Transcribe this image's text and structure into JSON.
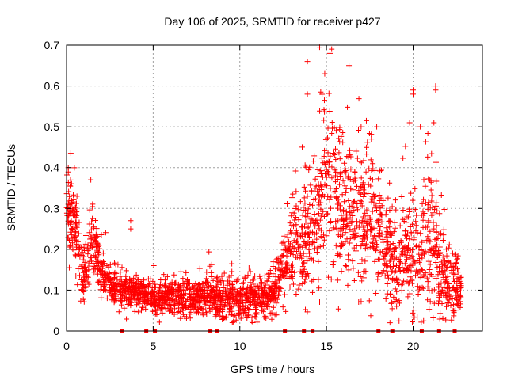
{
  "chart_data": {
    "type": "scatter",
    "title": "Day 106 of 2025, SRMTID for receiver p427",
    "xlabel": "GPS time / hours",
    "ylabel": "SRMTID / TECUs",
    "xlim": [
      0,
      24
    ],
    "ylim": [
      0,
      0.7
    ],
    "xticks": [
      0,
      5,
      10,
      15,
      20
    ],
    "yticks": [
      0,
      0.1,
      0.2,
      0.3,
      0.4,
      0.5,
      0.6,
      0.7
    ],
    "xtick_labels": [
      "0",
      "5",
      "10",
      "15",
      "20"
    ],
    "ytick_labels": [
      "0",
      "0.1",
      "0.2",
      "0.3",
      "0.4",
      "0.5",
      "0.6",
      "0.7"
    ],
    "grid": true,
    "marker": "plus",
    "color": "#ff0000",
    "profile": [
      [
        0.0,
        0.3,
        0.05
      ],
      [
        0.5,
        0.25,
        0.05
      ],
      [
        1.0,
        0.12,
        0.03
      ],
      [
        1.5,
        0.22,
        0.05
      ],
      [
        2.0,
        0.14,
        0.03
      ],
      [
        3.0,
        0.1,
        0.02
      ],
      [
        4.0,
        0.1,
        0.02
      ],
      [
        5.0,
        0.08,
        0.02
      ],
      [
        7.0,
        0.08,
        0.025
      ],
      [
        9.0,
        0.08,
        0.025
      ],
      [
        11.0,
        0.08,
        0.025
      ],
      [
        12.0,
        0.09,
        0.025
      ],
      [
        13.0,
        0.2,
        0.06
      ],
      [
        14.0,
        0.22,
        0.07
      ],
      [
        15.0,
        0.38,
        0.1
      ],
      [
        16.0,
        0.3,
        0.1
      ],
      [
        17.0,
        0.28,
        0.09
      ],
      [
        18.0,
        0.25,
        0.08
      ],
      [
        19.0,
        0.16,
        0.06
      ],
      [
        20.0,
        0.18,
        0.08
      ],
      [
        21.0,
        0.22,
        0.09
      ],
      [
        22.0,
        0.12,
        0.05
      ],
      [
        22.8,
        0.1,
        0.03
      ]
    ],
    "notable_points": [
      {
        "x": 13.9,
        "y": 0.66
      },
      {
        "x": 15.3,
        "y": 0.69
      },
      {
        "x": 15.2,
        "y": 0.68
      },
      {
        "x": 14.9,
        "y": 0.63
      },
      {
        "x": 16.3,
        "y": 0.65
      },
      {
        "x": 21.3,
        "y": 0.6
      },
      {
        "x": 21.3,
        "y": 0.59
      },
      {
        "x": 20.0,
        "y": 0.59
      },
      {
        "x": 20.0,
        "y": 0.58
      },
      {
        "x": 19.8,
        "y": 0.51
      },
      {
        "x": 21.2,
        "y": 0.51
      },
      {
        "x": 17.0,
        "y": 0.5
      },
      {
        "x": 17.9,
        "y": 0.5
      },
      {
        "x": 13.9,
        "y": 0.58
      },
      {
        "x": 13.6,
        "y": 0.45
      },
      {
        "x": 3.7,
        "y": 0.27
      },
      {
        "x": 3.7,
        "y": 0.25
      },
      {
        "x": 0.1,
        "y": 0.4
      },
      {
        "x": 0.6,
        "y": 0.33
      },
      {
        "x": 1.4,
        "y": 0.37
      }
    ],
    "baseline_marks_x": [
      3.2,
      4.6,
      5.1,
      8.3,
      8.7,
      12.6,
      13.7,
      14.2,
      18.0,
      18.8,
      20.5,
      21.5,
      22.4
    ]
  }
}
